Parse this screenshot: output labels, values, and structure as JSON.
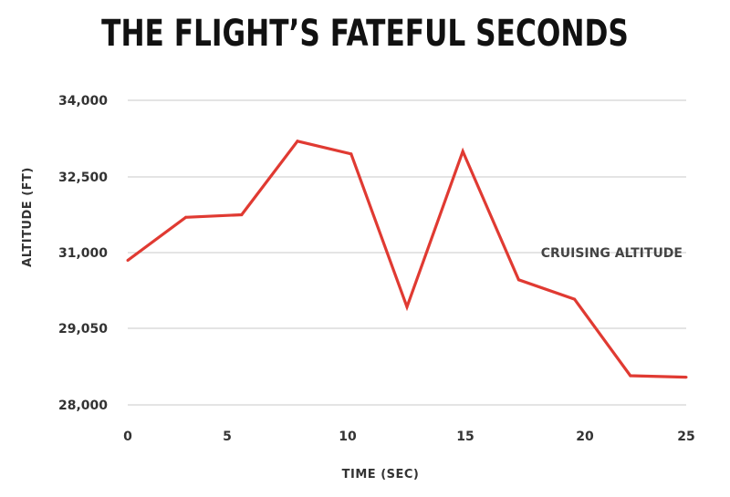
{
  "chart_data": {
    "type": "line",
    "title": "THE FLIGHT’S FATEFUL SECONDS",
    "xlabel": "TIME (SEC)",
    "ylabel": "ALTITUDE (FT)",
    "x_tick_labels": [
      "0",
      "5",
      "10",
      "15",
      "20",
      "25"
    ],
    "y_tick_labels": [
      "34,000",
      "32,500",
      "31,000",
      "29,050",
      "28,000"
    ],
    "annotation": "CRUISING ALTITUDE",
    "grid": "horizontal",
    "line_color": "#e03a32",
    "series": [
      {
        "x": [
          0,
          2.6,
          5.1,
          7.6,
          10.0,
          12.5,
          15.0,
          17.5,
          20.0,
          22.5,
          25.0
        ],
        "y": [
          30800,
          31700,
          31750,
          33200,
          32950,
          29600,
          33000,
          30300,
          29800,
          28400,
          28380
        ]
      }
    ]
  }
}
